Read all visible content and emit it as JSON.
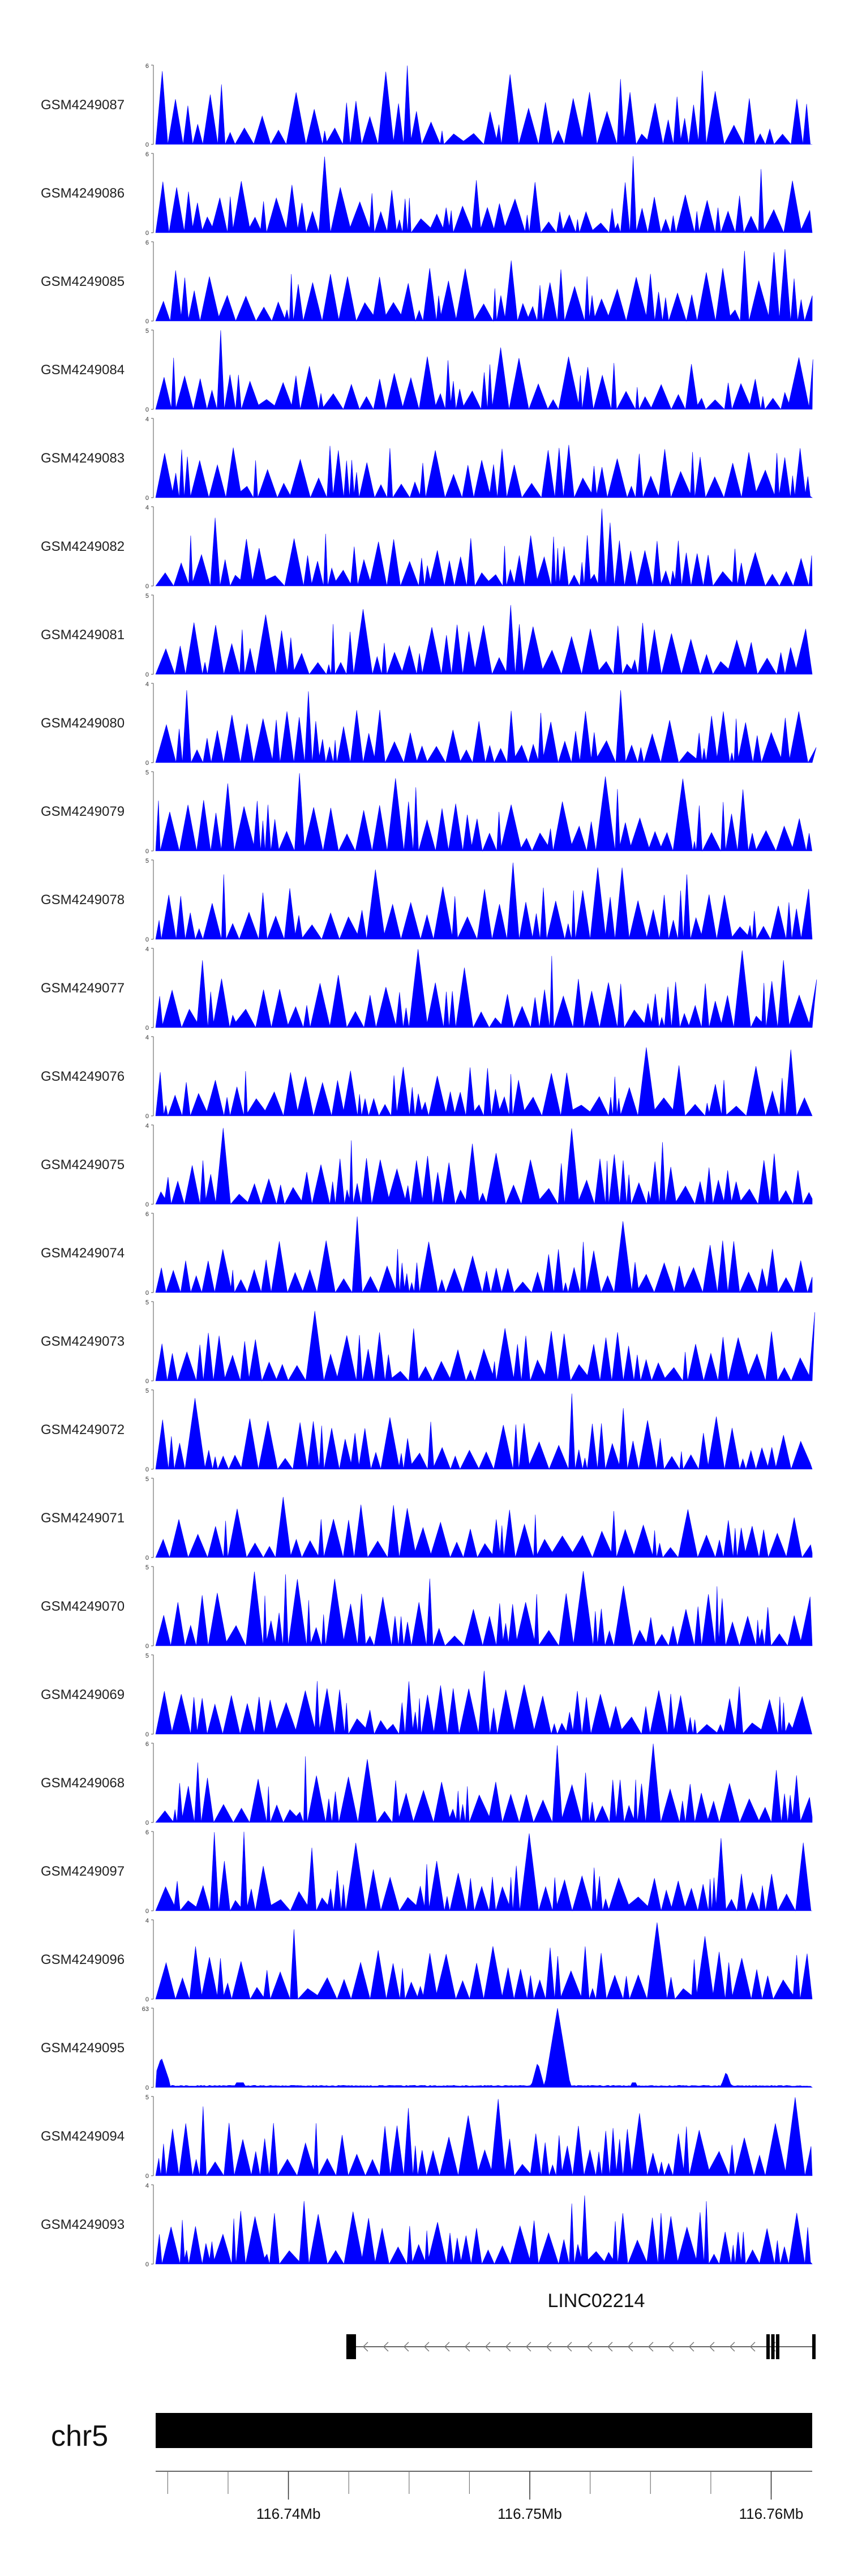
{
  "chart_data": {
    "type": "area",
    "genome_region": {
      "chromosome": "chr5",
      "xlim": [
        116.7345,
        116.7617
      ],
      "ticks": [
        116.74,
        116.75,
        116.76
      ],
      "tick_labels": [
        "116.74Mb",
        "116.75Mb",
        "116.76Mb"
      ]
    },
    "gene": {
      "name": "LINC02214",
      "strand": "-",
      "start": 116.7424,
      "end": 116.7617,
      "exons": [
        [
          116.7424,
          116.7428
        ],
        [
          116.7598,
          116.7599
        ],
        [
          116.76,
          116.7601
        ],
        [
          116.7602,
          116.7603
        ],
        [
          116.7617,
          116.7618
        ]
      ]
    },
    "colors": {
      "signal": "#0000ff",
      "ideogram": "#000000"
    },
    "tracks": [
      {
        "label": "GSM4249087",
        "ymax": 6
      },
      {
        "label": "GSM4249086",
        "ymax": 6
      },
      {
        "label": "GSM4249085",
        "ymax": 6
      },
      {
        "label": "GSM4249084",
        "ymax": 5
      },
      {
        "label": "GSM4249083",
        "ymax": 4
      },
      {
        "label": "GSM4249082",
        "ymax": 4
      },
      {
        "label": "GSM4249081",
        "ymax": 5
      },
      {
        "label": "GSM4249080",
        "ymax": 4
      },
      {
        "label": "GSM4249079",
        "ymax": 5
      },
      {
        "label": "GSM4249078",
        "ymax": 5
      },
      {
        "label": "GSM4249077",
        "ymax": 4
      },
      {
        "label": "GSM4249076",
        "ymax": 4
      },
      {
        "label": "GSM4249075",
        "ymax": 4
      },
      {
        "label": "GSM4249074",
        "ymax": 6
      },
      {
        "label": "GSM4249073",
        "ymax": 5
      },
      {
        "label": "GSM4249072",
        "ymax": 5
      },
      {
        "label": "GSM4249071",
        "ymax": 5
      },
      {
        "label": "GSM4249070",
        "ymax": 5
      },
      {
        "label": "GSM4249069",
        "ymax": 5
      },
      {
        "label": "GSM4249068",
        "ymax": 6
      },
      {
        "label": "GSM4249097",
        "ymax": 6
      },
      {
        "label": "GSM4249096",
        "ymax": 4
      },
      {
        "label": "GSM4249095",
        "ymax": 63
      },
      {
        "label": "GSM4249094",
        "ymax": 5
      },
      {
        "label": "GSM4249093",
        "ymax": 4
      }
    ]
  }
}
